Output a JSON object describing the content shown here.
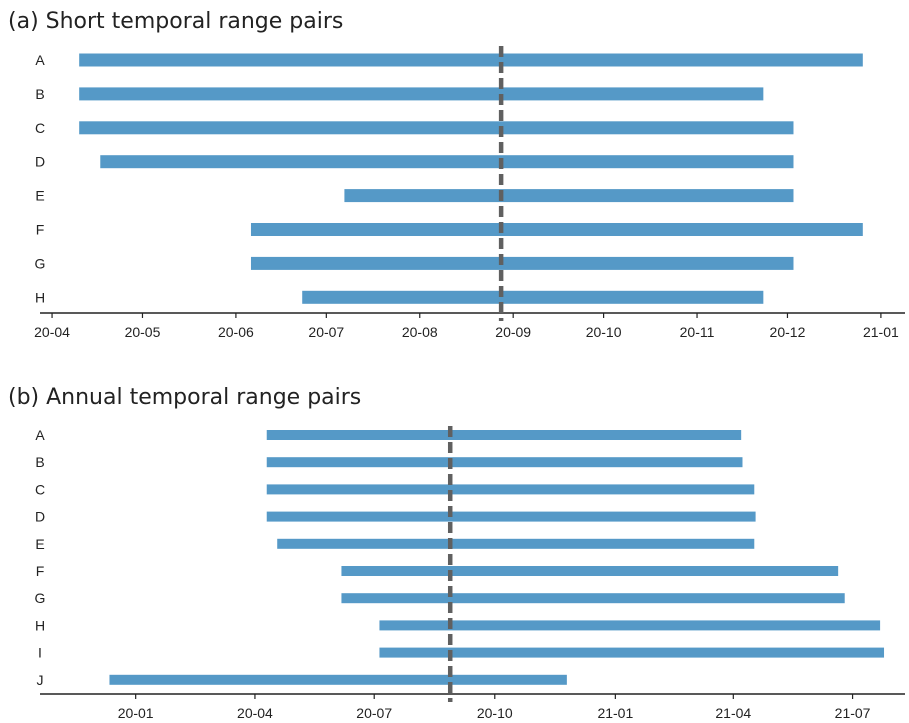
{
  "chart_data": [
    {
      "type": "bar",
      "title": "(a) Short temporal range pairs",
      "xlabel": "",
      "ylabel": "",
      "x_axis": "date",
      "xlim": [
        "2020-03-28",
        "2021-01-09"
      ],
      "x_ticks": [
        {
          "date": "2020-04-01",
          "label": "20-04"
        },
        {
          "date": "2020-05-01",
          "label": "20-05"
        },
        {
          "date": "2020-06-01",
          "label": "20-06"
        },
        {
          "date": "2020-07-01",
          "label": "20-07"
        },
        {
          "date": "2020-08-01",
          "label": "20-08"
        },
        {
          "date": "2020-09-01",
          "label": "20-09"
        },
        {
          "date": "2020-10-01",
          "label": "20-10"
        },
        {
          "date": "2020-11-01",
          "label": "20-11"
        },
        {
          "date": "2020-12-01",
          "label": "20-12"
        },
        {
          "date": "2021-01-01",
          "label": "21-01"
        }
      ],
      "reference_line": {
        "date": "2020-08-28",
        "style": "dashed",
        "color": "#606060"
      },
      "bar_color": "#5599c7",
      "grid": false,
      "ranges": [
        {
          "label": "A",
          "start": "2020-04-10",
          "end": "2020-12-26"
        },
        {
          "label": "B",
          "start": "2020-04-10",
          "end": "2020-11-23"
        },
        {
          "label": "C",
          "start": "2020-04-10",
          "end": "2020-12-03"
        },
        {
          "label": "D",
          "start": "2020-04-17",
          "end": "2020-12-03"
        },
        {
          "label": "E",
          "start": "2020-07-07",
          "end": "2020-12-03"
        },
        {
          "label": "F",
          "start": "2020-06-06",
          "end": "2020-12-26"
        },
        {
          "label": "G",
          "start": "2020-06-06",
          "end": "2020-12-03"
        },
        {
          "label": "H",
          "start": "2020-06-23",
          "end": "2020-11-23"
        }
      ]
    },
    {
      "type": "bar",
      "title": "(b) Annual temporal range pairs",
      "xlabel": "",
      "ylabel": "",
      "x_axis": "date",
      "xlim": [
        "2019-10-20",
        "2021-08-10"
      ],
      "x_ticks": [
        {
          "date": "2020-01-01",
          "label": "20-01"
        },
        {
          "date": "2020-04-01",
          "label": "20-04"
        },
        {
          "date": "2020-07-01",
          "label": "20-07"
        },
        {
          "date": "2020-10-01",
          "label": "20-10"
        },
        {
          "date": "2021-01-01",
          "label": "21-01"
        },
        {
          "date": "2021-04-01",
          "label": "21-04"
        },
        {
          "date": "2021-07-01",
          "label": "21-07"
        }
      ],
      "reference_line": {
        "date": "2020-08-28",
        "style": "dashed",
        "color": "#606060"
      },
      "bar_color": "#5599c7",
      "grid": false,
      "ranges": [
        {
          "label": "A",
          "start": "2020-04-10",
          "end": "2021-04-07"
        },
        {
          "label": "B",
          "start": "2020-04-10",
          "end": "2021-04-08"
        },
        {
          "label": "C",
          "start": "2020-04-10",
          "end": "2021-04-17"
        },
        {
          "label": "D",
          "start": "2020-04-10",
          "end": "2021-04-18"
        },
        {
          "label": "E",
          "start": "2020-04-18",
          "end": "2021-04-17"
        },
        {
          "label": "F",
          "start": "2020-06-06",
          "end": "2021-06-20"
        },
        {
          "label": "G",
          "start": "2020-06-06",
          "end": "2021-06-25"
        },
        {
          "label": "H",
          "start": "2020-07-05",
          "end": "2021-07-22"
        },
        {
          "label": "I",
          "start": "2020-07-05",
          "end": "2021-07-25"
        },
        {
          "label": "J",
          "start": "2019-12-12",
          "end": "2020-11-25"
        }
      ]
    }
  ]
}
